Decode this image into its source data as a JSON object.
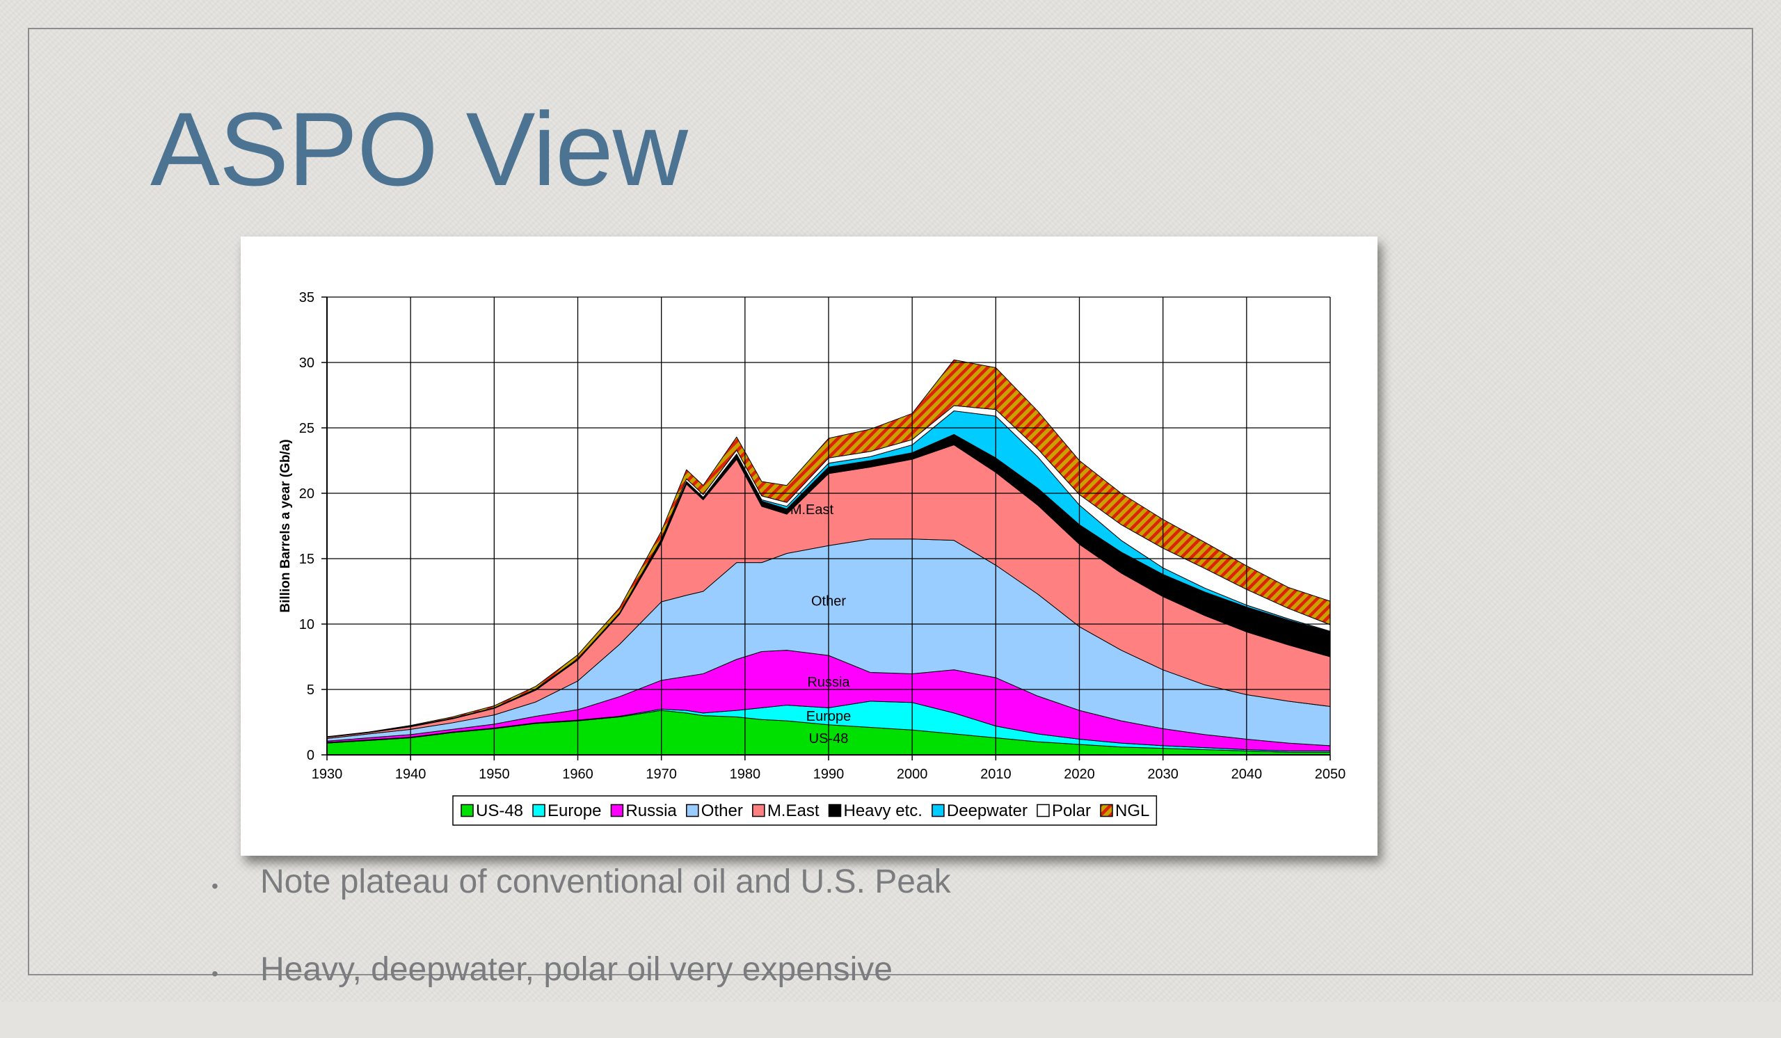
{
  "slide": {
    "title": "ASPO View",
    "bullets": [
      "Note plateau of conventional oil and U.S. Peak",
      "Heavy, deepwater, polar oil very expensive"
    ]
  },
  "chart_data": {
    "type": "area",
    "stacked": true,
    "title": "",
    "xlabel": "",
    "ylabel": "Billion Barrels a year (Gb/a)",
    "xlim": [
      1930,
      2050
    ],
    "ylim": [
      0,
      35
    ],
    "x_ticks": [
      1930,
      1940,
      1950,
      1960,
      1970,
      1980,
      1990,
      2000,
      2010,
      2020,
      2030,
      2040,
      2050
    ],
    "y_ticks": [
      0,
      5,
      10,
      15,
      20,
      25,
      30,
      35
    ],
    "grid": true,
    "legend_position": "bottom",
    "x": [
      1930,
      1935,
      1940,
      1945,
      1950,
      1955,
      1960,
      1965,
      1970,
      1973,
      1975,
      1979,
      1982,
      1985,
      1990,
      1995,
      2000,
      2005,
      2010,
      2015,
      2020,
      2025,
      2030,
      2035,
      2040,
      2045,
      2050
    ],
    "series": [
      {
        "name": "US-48",
        "color": "#00e000",
        "values": [
          0.9,
          1.1,
          1.3,
          1.7,
          2.0,
          2.4,
          2.6,
          2.9,
          3.4,
          3.2,
          3.0,
          2.9,
          2.7,
          2.6,
          2.3,
          2.1,
          1.9,
          1.6,
          1.3,
          1.0,
          0.8,
          0.6,
          0.5,
          0.4,
          0.3,
          0.2,
          0.2
        ]
      },
      {
        "name": "Europe",
        "color": "#00ffff",
        "values": [
          0.05,
          0.05,
          0.05,
          0.05,
          0.05,
          0.05,
          0.05,
          0.05,
          0.1,
          0.2,
          0.2,
          0.5,
          0.9,
          1.2,
          1.3,
          2.0,
          2.1,
          1.6,
          0.9,
          0.6,
          0.4,
          0.3,
          0.2,
          0.15,
          0.1,
          0.1,
          0.1
        ]
      },
      {
        "name": "Russia",
        "color": "#ff00ff",
        "values": [
          0.1,
          0.15,
          0.2,
          0.2,
          0.3,
          0.5,
          0.8,
          1.5,
          2.2,
          2.6,
          3.0,
          3.9,
          4.3,
          4.2,
          4.0,
          2.2,
          2.2,
          3.3,
          3.7,
          2.9,
          2.2,
          1.7,
          1.3,
          1.0,
          0.8,
          0.6,
          0.4
        ]
      },
      {
        "name": "Other",
        "color": "#99ccff",
        "values": [
          0.2,
          0.3,
          0.4,
          0.5,
          0.7,
          1.1,
          2.2,
          4.0,
          6.0,
          6.2,
          6.3,
          7.4,
          6.8,
          7.4,
          8.4,
          10.2,
          10.3,
          9.9,
          8.6,
          7.8,
          6.4,
          5.4,
          4.5,
          3.8,
          3.4,
          3.2,
          3.0
        ]
      },
      {
        "name": "M.East",
        "color": "#ff8080",
        "values": [
          0.1,
          0.1,
          0.2,
          0.3,
          0.5,
          0.9,
          1.6,
          2.3,
          4.5,
          8.5,
          7.0,
          7.9,
          4.3,
          3.0,
          5.5,
          5.5,
          6.1,
          7.3,
          7.1,
          6.8,
          6.3,
          5.9,
          5.6,
          5.3,
          4.8,
          4.3,
          3.8
        ]
      },
      {
        "name": "Heavy etc.",
        "color": "#000000",
        "values": [
          0.02,
          0.02,
          0.05,
          0.05,
          0.05,
          0.1,
          0.1,
          0.1,
          0.2,
          0.2,
          0.2,
          0.3,
          0.4,
          0.4,
          0.5,
          0.5,
          0.5,
          0.8,
          1.1,
          1.3,
          1.5,
          1.6,
          1.7,
          1.8,
          1.9,
          1.9,
          1.9
        ]
      },
      {
        "name": "Deepwater",
        "color": "#00ccff",
        "values": [
          0,
          0,
          0,
          0,
          0,
          0,
          0,
          0,
          0,
          0,
          0,
          0.1,
          0.1,
          0.2,
          0.3,
          0.3,
          0.6,
          1.8,
          3.2,
          2.4,
          1.5,
          0.9,
          0.5,
          0.3,
          0.15,
          0.1,
          0.05
        ]
      },
      {
        "name": "Polar",
        "color": "#ffffff",
        "values": [
          0,
          0,
          0,
          0,
          0,
          0,
          0,
          0,
          0.1,
          0.2,
          0.2,
          0.3,
          0.3,
          0.3,
          0.4,
          0.4,
          0.4,
          0.4,
          0.5,
          0.6,
          0.8,
          1.2,
          1.5,
          1.5,
          1.2,
          0.8,
          0.5
        ]
      },
      {
        "name": "NGL",
        "color": "#c8a000",
        "hatch": "#dd2200",
        "values": [
          0.02,
          0.03,
          0.05,
          0.1,
          0.15,
          0.2,
          0.3,
          0.4,
          0.6,
          0.7,
          0.7,
          1.0,
          1.1,
          1.3,
          1.5,
          1.7,
          2.0,
          3.5,
          3.2,
          2.9,
          2.6,
          2.4,
          2.2,
          2.0,
          1.8,
          1.6,
          1.8
        ]
      }
    ],
    "annotations": [
      {
        "text": "M.East",
        "x": 1988,
        "y": 18.4
      },
      {
        "text": "Other",
        "x": 1990,
        "y": 11.4
      },
      {
        "text": "Russia",
        "x": 1990,
        "y": 5.2
      },
      {
        "text": "Europe",
        "x": 1990,
        "y": 2.6
      },
      {
        "text": "US-48",
        "x": 1990,
        "y": 0.9
      }
    ]
  }
}
